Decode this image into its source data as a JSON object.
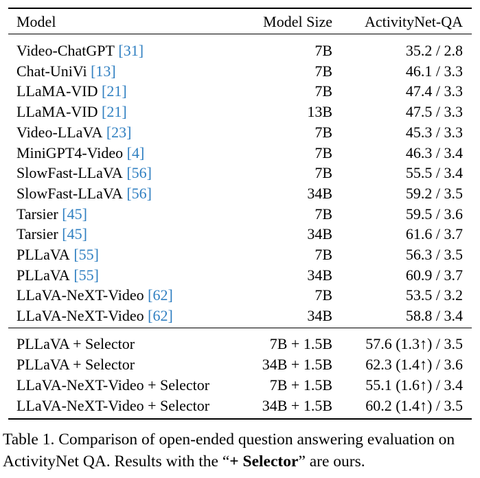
{
  "table": {
    "header": [
      "Model",
      "Model Size",
      "ActivityNet-QA"
    ],
    "rows": [
      {
        "model": "Video-ChatGPT",
        "ref": "[31]",
        "size": "7B",
        "result": "35.2 / 2.8"
      },
      {
        "model": "Chat-UniVi",
        "ref": "[13]",
        "size": "7B",
        "result": "46.1 / 3.3"
      },
      {
        "model": "LLaMA-VID",
        "ref": "[21]",
        "size": "7B",
        "result": "47.4 / 3.3"
      },
      {
        "model": "LLaMA-VID",
        "ref": "[21]",
        "size": "13B",
        "result": "47.5 / 3.3"
      },
      {
        "model": "Video-LLaVA",
        "ref": "[23]",
        "size": "7B",
        "result": "45.3 / 3.3"
      },
      {
        "model": "MiniGPT4-Video",
        "ref": "[4]",
        "size": "7B",
        "result": "46.3 / 3.4"
      },
      {
        "model": "SlowFast-LLaVA",
        "ref": "[56]",
        "size": "7B",
        "result": "55.5 / 3.4"
      },
      {
        "model": "SlowFast-LLaVA",
        "ref": "[56]",
        "size": "34B",
        "result": "59.2 / 3.5"
      },
      {
        "model": "Tarsier",
        "ref": "[45]",
        "size": "7B",
        "result": "59.5 / 3.6"
      },
      {
        "model": "Tarsier",
        "ref": "[45]",
        "size": "34B",
        "result": "61.6 / 3.7"
      },
      {
        "model": "PLLaVA",
        "ref": "[55]",
        "size": "7B",
        "result": "56.3 / 3.5"
      },
      {
        "model": "PLLaVA",
        "ref": "[55]",
        "size": "34B",
        "result": "60.9 / 3.7"
      },
      {
        "model": "LLaVA-NeXT-Video",
        "ref": "[62]",
        "size": "7B",
        "result": "53.5 / 3.2"
      },
      {
        "model": "LLaVA-NeXT-Video",
        "ref": "[62]",
        "size": "34B",
        "result": "58.8 / 3.4"
      }
    ],
    "selector_rows": [
      {
        "model": "PLLaVA + Selector",
        "size": "7B + 1.5B",
        "result": "57.6 (1.3↑) / 3.5"
      },
      {
        "model": "PLLaVA + Selector",
        "size": "34B + 1.5B",
        "result": "62.3 (1.4↑) / 3.6"
      },
      {
        "model": "LLaVA-NeXT-Video + Selector",
        "size": "7B + 1.5B",
        "result": "55.1 (1.6↑) / 3.4"
      },
      {
        "model": "LLaVA-NeXT-Video + Selector",
        "size": "34B + 1.5B",
        "result": "60.2 (1.4↑) / 3.5"
      }
    ]
  },
  "caption": {
    "before": "Table 1. Comparison of open-ended question answering evaluation on ActivityNet QA. Results with the “",
    "bold": "+ Selector",
    "after": "” are ours."
  }
}
